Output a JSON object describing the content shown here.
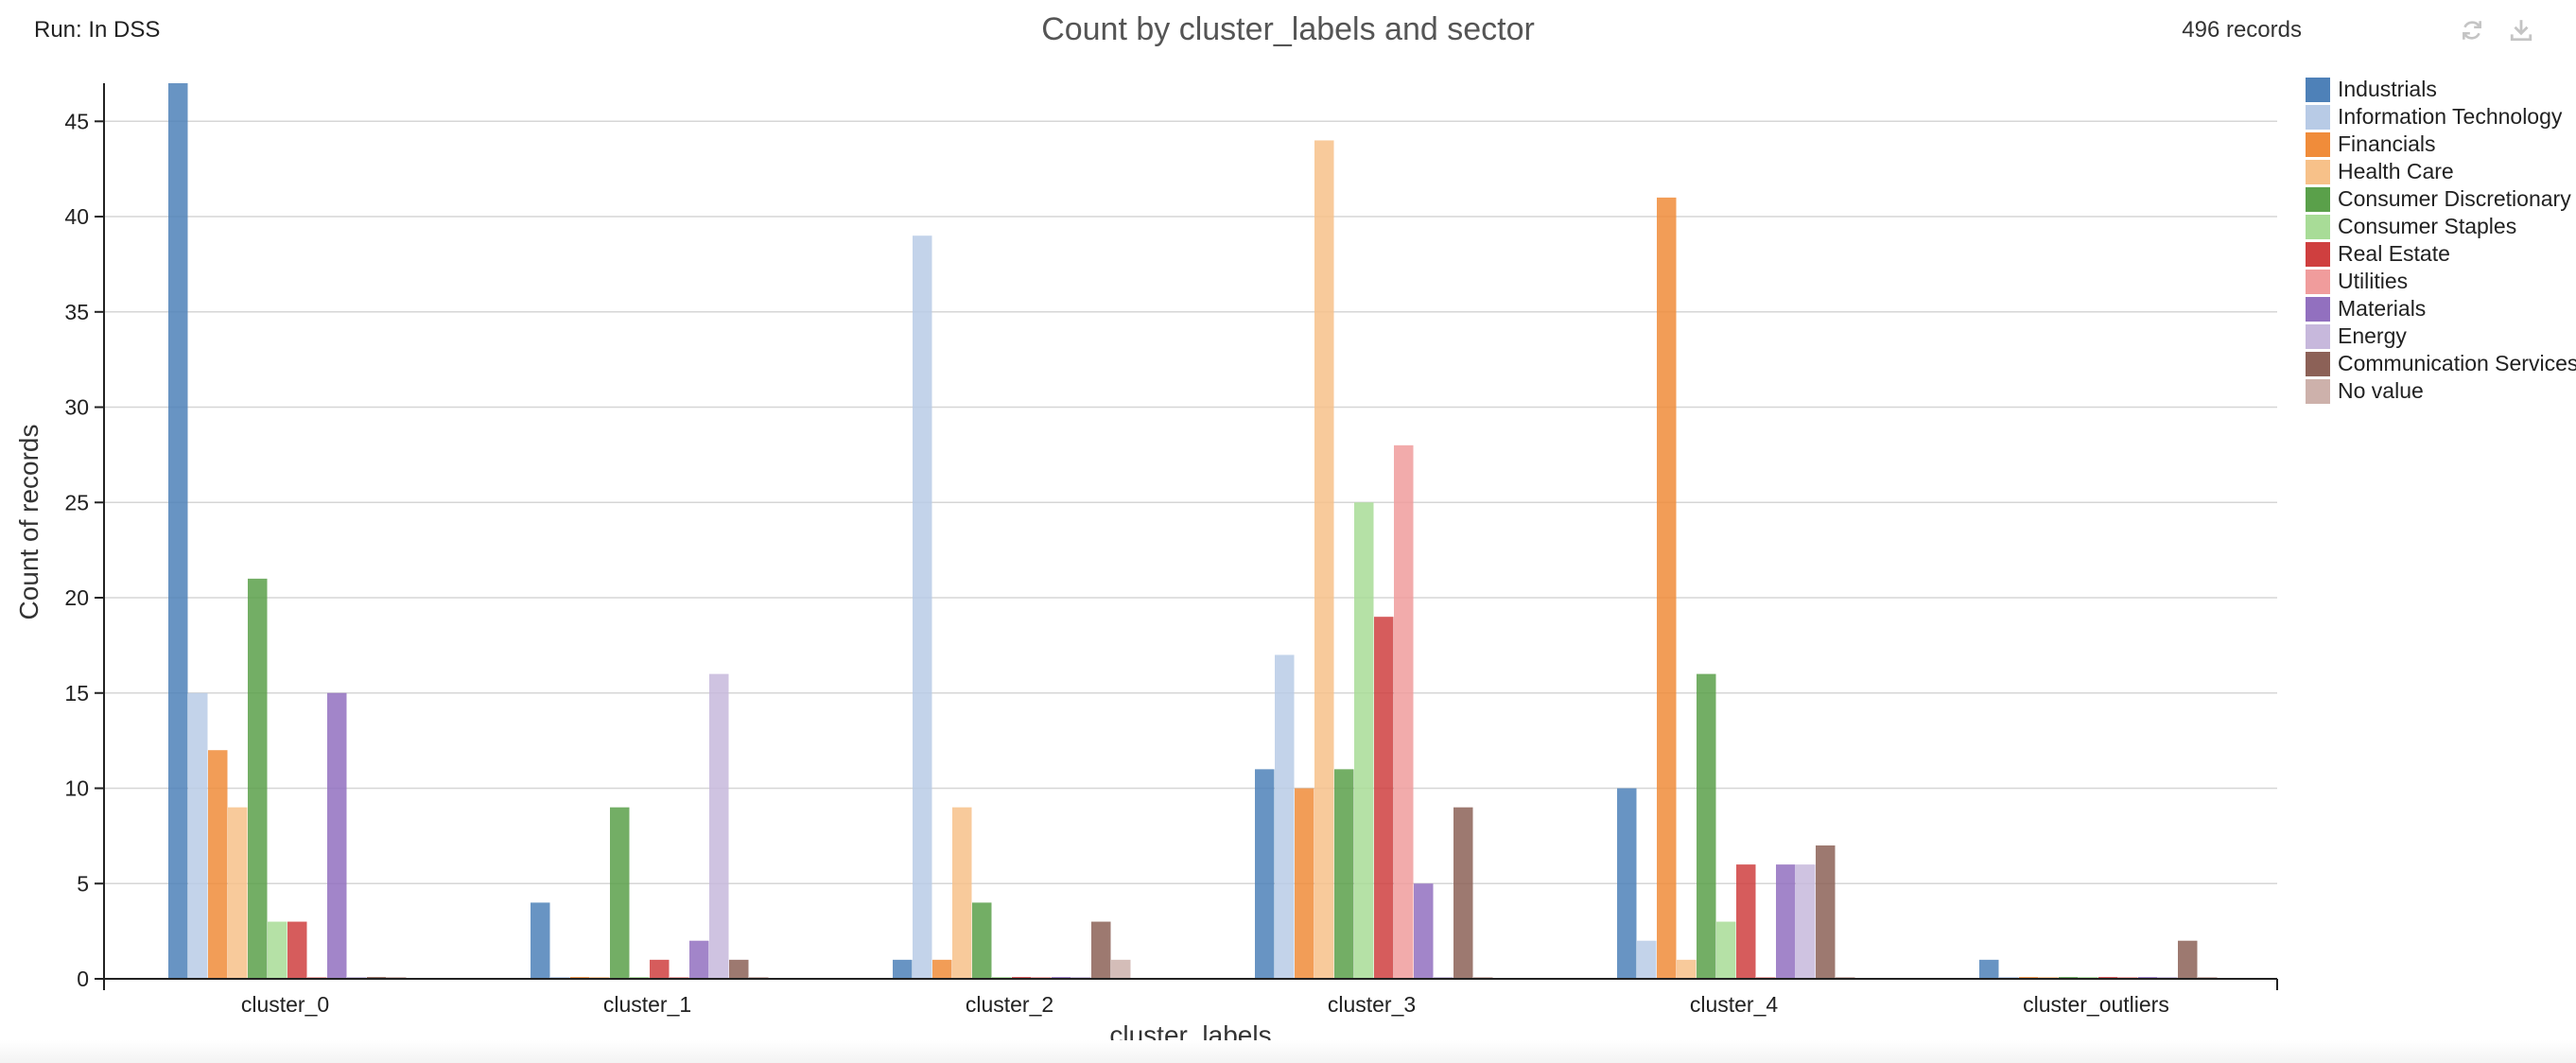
{
  "header": {
    "run_label": "Run: In DSS",
    "title": "Count by cluster_labels and sector",
    "records": "496 records",
    "refresh_icon": "refresh-icon",
    "download_icon": "download-icon"
  },
  "chart_data": {
    "type": "bar",
    "title": "Count by cluster_labels and sector",
    "xlabel": "cluster_labels",
    "ylabel": "Count of records",
    "ylim": [
      0,
      47
    ],
    "yticks": [
      0,
      5,
      10,
      15,
      20,
      25,
      30,
      35,
      40,
      45
    ],
    "grid": true,
    "legend_position": "right",
    "categories": [
      "cluster_0",
      "cluster_1",
      "cluster_2",
      "cluster_3",
      "cluster_4",
      "cluster_outliers"
    ],
    "series": [
      {
        "name": "Industrials",
        "color": "#4e81b8",
        "values": [
          47,
          4,
          1,
          11,
          10,
          1
        ]
      },
      {
        "name": "Information Technology",
        "color": "#b8cbe6",
        "values": [
          15,
          0,
          39,
          17,
          2,
          0
        ]
      },
      {
        "name": "Financials",
        "color": "#f08c3a",
        "values": [
          12,
          0,
          1,
          10,
          41,
          0
        ]
      },
      {
        "name": "Health Care",
        "color": "#f7c189",
        "values": [
          9,
          0,
          9,
          44,
          1,
          0
        ]
      },
      {
        "name": "Consumer Discretionary",
        "color": "#5aa04a",
        "values": [
          21,
          9,
          4,
          11,
          16,
          0
        ]
      },
      {
        "name": "Consumer Staples",
        "color": "#a8dc97",
        "values": [
          3,
          0,
          0,
          25,
          3,
          0
        ]
      },
      {
        "name": "Real Estate",
        "color": "#cf3f3f",
        "values": [
          3,
          1,
          0,
          19,
          6,
          0
        ]
      },
      {
        "name": "Utilities",
        "color": "#f09c9c",
        "values": [
          0,
          0,
          0,
          28,
          0,
          0
        ]
      },
      {
        "name": "Materials",
        "color": "#9270bf",
        "values": [
          15,
          2,
          0,
          5,
          6,
          0
        ]
      },
      {
        "name": "Energy",
        "color": "#c7b8dc",
        "values": [
          0,
          16,
          0,
          0,
          6,
          0
        ]
      },
      {
        "name": "Communication Services",
        "color": "#8c6157",
        "values": [
          0,
          1,
          3,
          9,
          7,
          2
        ]
      },
      {
        "name": "No value",
        "color": "#cdb1ab",
        "values": [
          0,
          0,
          1,
          0,
          0,
          0
        ]
      }
    ]
  }
}
